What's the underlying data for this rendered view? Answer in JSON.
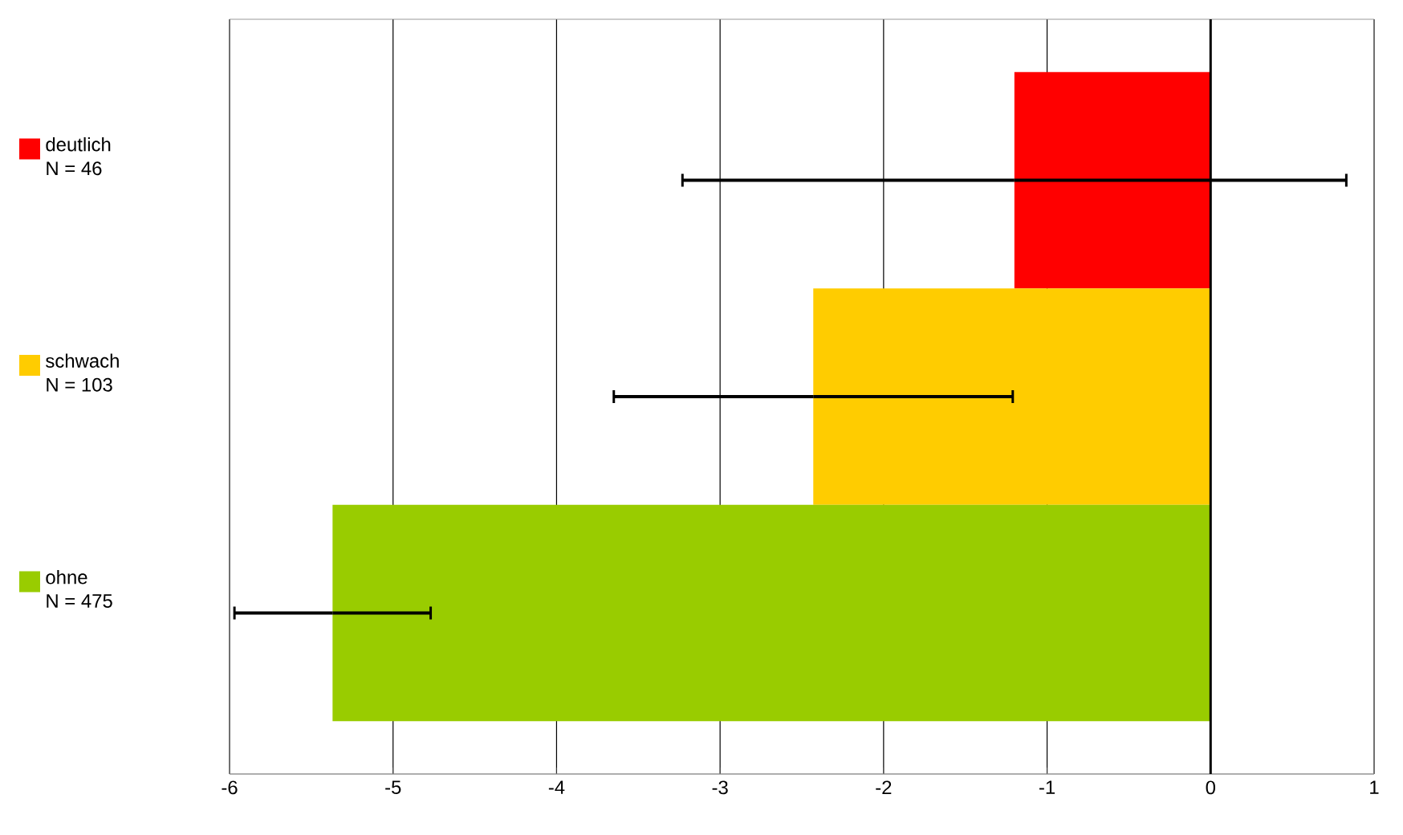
{
  "chart_data": {
    "type": "bar",
    "orientation": "horizontal",
    "categories": [
      "deutlich",
      "schwach",
      "ohne"
    ],
    "values": [
      -1.2,
      -2.43,
      -5.37
    ],
    "errors": [
      2.03,
      1.22,
      0.6
    ],
    "colors": [
      "#ff0000",
      "#ffcc00",
      "#99cc00"
    ],
    "annotations": [
      "N = 46",
      "N = 103",
      "N = 475"
    ],
    "xlim": [
      -6,
      1
    ],
    "xticks": [
      -6,
      -5,
      -4,
      -3,
      -2,
      -1,
      0,
      1
    ],
    "grid": "x"
  }
}
